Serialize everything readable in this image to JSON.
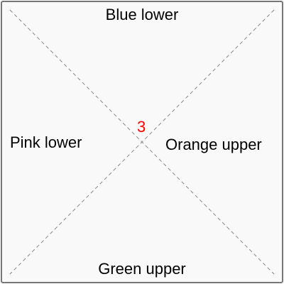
{
  "diagram": {
    "labels": {
      "top": "Blue lower",
      "bottom": "Green upper",
      "left": "Pink lower",
      "right": "Orange upper"
    },
    "center_marker": {
      "text": "3",
      "color": "#ff0000"
    },
    "colors": {
      "background": "#f9f9f9",
      "border": "#777777",
      "diagonals": "#888888",
      "text": "#000000"
    },
    "diagonal_style": "dashed"
  }
}
